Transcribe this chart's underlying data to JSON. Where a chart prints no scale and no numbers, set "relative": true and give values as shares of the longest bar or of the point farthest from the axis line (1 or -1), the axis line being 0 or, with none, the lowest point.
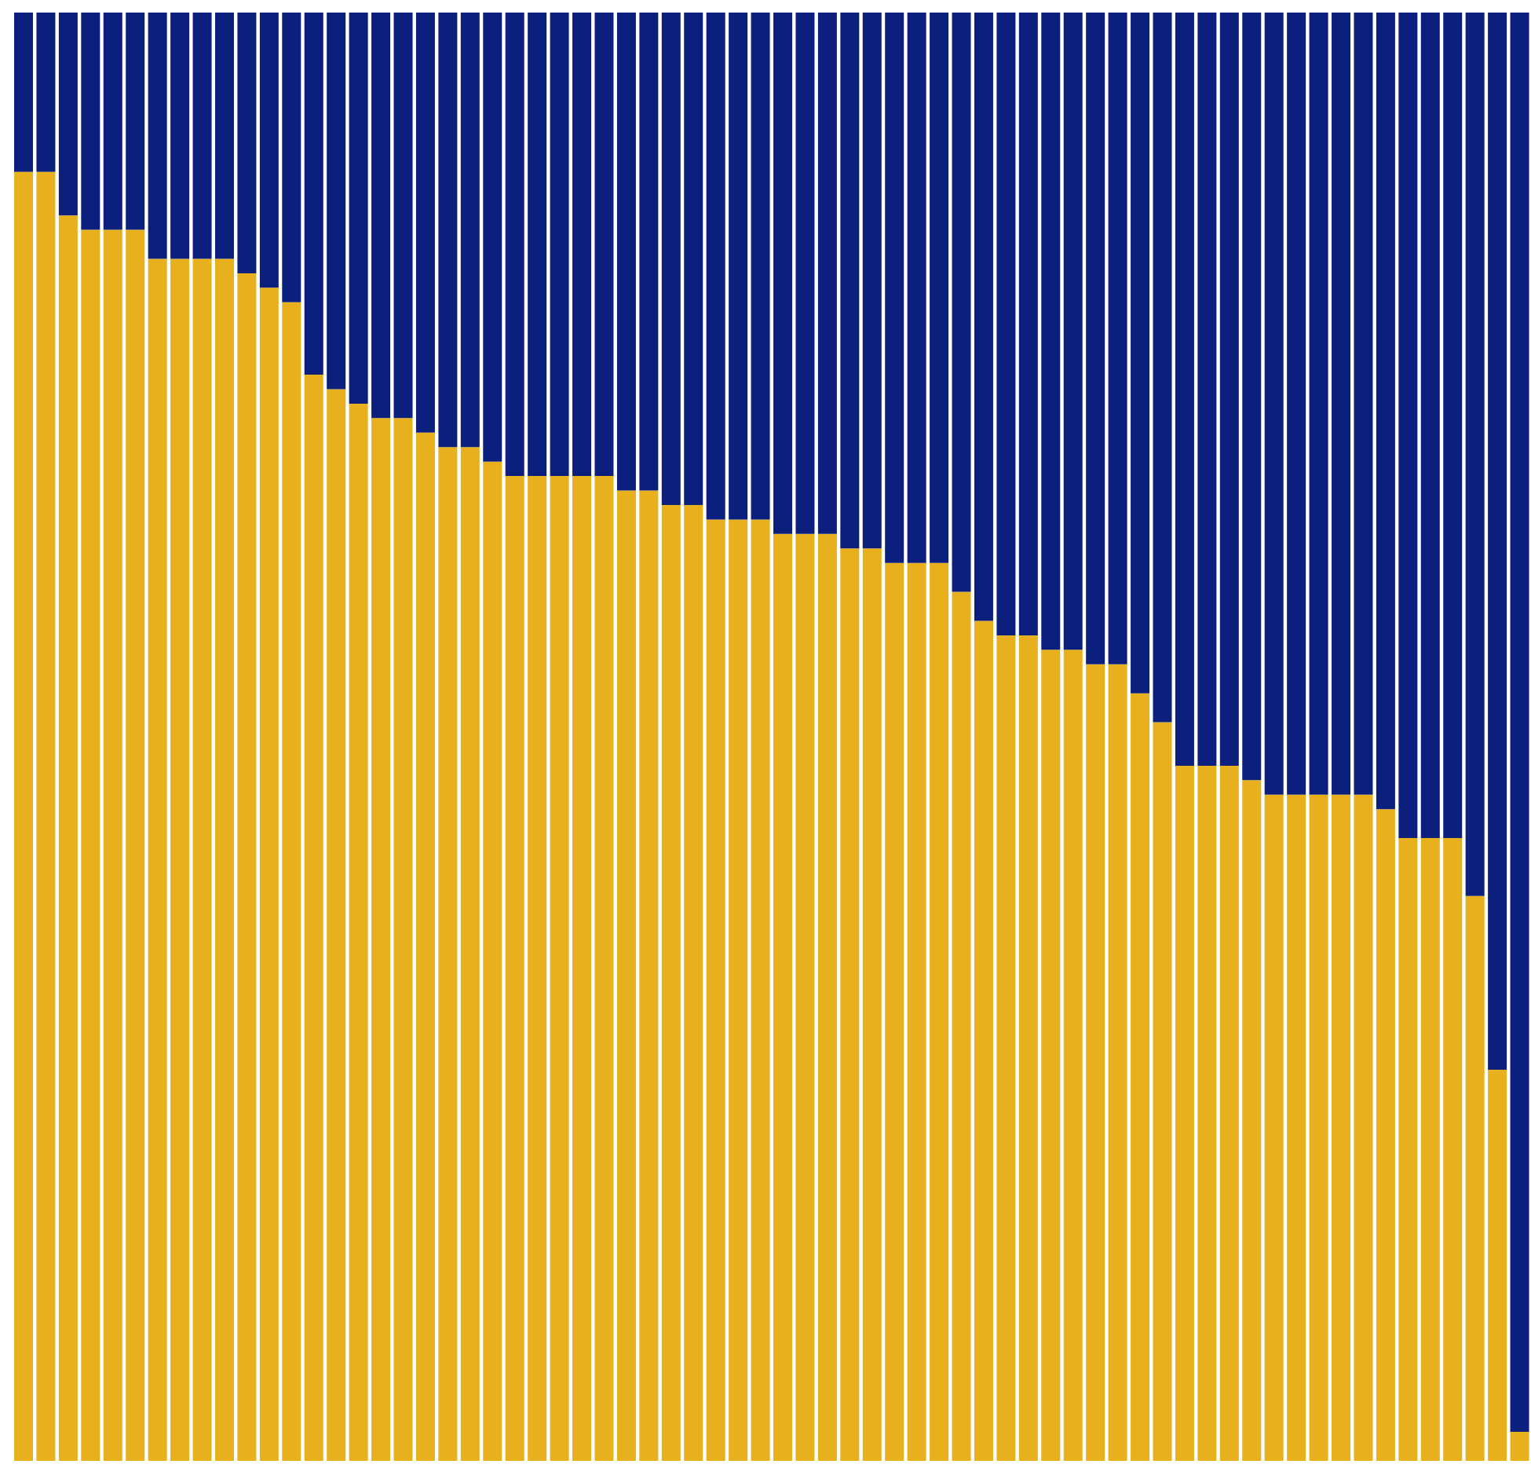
{
  "chart_data": {
    "type": "bar",
    "relative": true,
    "stacked": true,
    "categories": [
      null,
      null,
      null,
      null,
      null,
      null,
      null,
      null,
      null,
      null,
      null,
      null,
      null,
      null,
      null,
      null,
      null,
      null,
      null,
      null,
      null,
      null,
      null,
      null,
      null,
      null,
      null,
      null,
      null,
      null,
      null,
      null,
      null,
      null,
      null,
      null,
      null,
      null,
      null,
      null,
      null,
      null,
      null,
      null,
      null,
      null,
      null,
      null,
      null,
      null,
      null,
      null,
      null,
      null,
      null,
      null,
      null,
      null,
      null,
      null,
      null,
      null,
      null,
      null,
      null,
      null,
      null,
      null
    ],
    "series": [
      {
        "color": "#e9b01e",
        "values": [
          0.89,
          0.89,
          0.86,
          0.85,
          0.85,
          0.85,
          0.83,
          0.83,
          0.83,
          0.83,
          0.82,
          0.81,
          0.8,
          0.75,
          0.74,
          0.73,
          0.72,
          0.72,
          0.71,
          0.7,
          0.7,
          0.69,
          0.68,
          0.68,
          0.68,
          0.68,
          0.68,
          0.67,
          0.67,
          0.66,
          0.66,
          0.65,
          0.65,
          0.65,
          0.64,
          0.64,
          0.64,
          0.63,
          0.63,
          0.62,
          0.62,
          0.62,
          0.6,
          0.58,
          0.57,
          0.57,
          0.56,
          0.56,
          0.55,
          0.55,
          0.53,
          0.51,
          0.48,
          0.48,
          0.48,
          0.47,
          0.46,
          0.46,
          0.46,
          0.46,
          0.46,
          0.45,
          0.43,
          0.43,
          0.43,
          0.39,
          0.27,
          0.02
        ]
      },
      {
        "color": "#0b207c",
        "values": [
          0.11,
          0.11,
          0.14,
          0.15,
          0.15,
          0.15,
          0.17,
          0.17,
          0.17,
          0.17,
          0.18,
          0.19,
          0.2,
          0.25,
          0.26,
          0.27,
          0.28,
          0.28,
          0.29,
          0.3,
          0.3,
          0.31,
          0.32,
          0.32,
          0.32,
          0.32,
          0.32,
          0.33,
          0.33,
          0.34,
          0.34,
          0.35,
          0.35,
          0.35,
          0.36,
          0.36,
          0.36,
          0.37,
          0.37,
          0.38,
          0.38,
          0.38,
          0.4,
          0.42,
          0.43,
          0.43,
          0.44,
          0.44,
          0.45,
          0.45,
          0.47,
          0.49,
          0.52,
          0.52,
          0.52,
          0.53,
          0.54,
          0.54,
          0.54,
          0.54,
          0.54,
          0.55,
          0.57,
          0.57,
          0.57,
          0.61,
          0.73,
          0.98
        ]
      }
    ]
  }
}
